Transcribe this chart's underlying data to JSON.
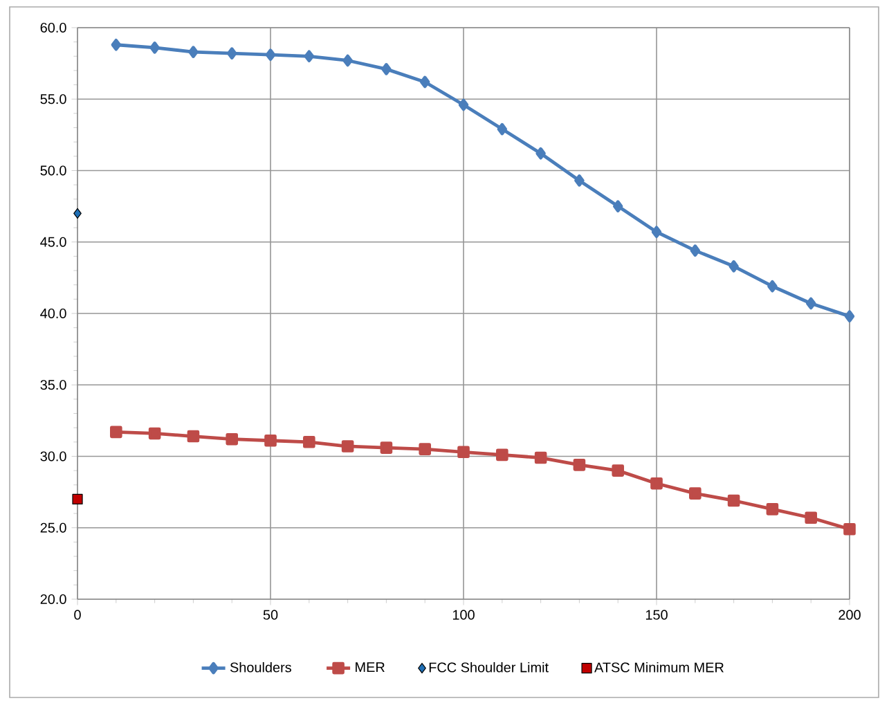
{
  "chart_data": {
    "type": "line",
    "xlim": [
      0,
      200
    ],
    "xticks": [
      0,
      50,
      100,
      150,
      200
    ],
    "ylim": [
      20,
      60
    ],
    "yticks": [
      {
        "value": 20,
        "label": "20.0"
      },
      {
        "value": 25,
        "label": "25.0"
      },
      {
        "value": 30,
        "label": "30.0"
      },
      {
        "value": 35,
        "label": "35.0"
      },
      {
        "value": 40,
        "label": "40.0"
      },
      {
        "value": 45,
        "label": "45.0"
      },
      {
        "value": 50,
        "label": "50.0"
      },
      {
        "value": 55,
        "label": "55.0"
      },
      {
        "value": 60,
        "label": "60.0"
      }
    ],
    "grid": true,
    "legend": "bottom",
    "series": [
      {
        "name": "Shoulders",
        "marker": "diamond",
        "color": "#4a7ebb",
        "x": [
          10,
          20,
          30,
          40,
          50,
          60,
          70,
          80,
          90,
          100,
          110,
          120,
          130,
          140,
          150,
          160,
          170,
          180,
          190,
          200
        ],
        "values": [
          58.8,
          58.6,
          58.3,
          58.2,
          58.1,
          58.0,
          57.7,
          57.1,
          56.2,
          54.6,
          52.9,
          51.2,
          49.3,
          47.5,
          45.7,
          44.4,
          43.3,
          41.9,
          40.7,
          39.8
        ]
      },
      {
        "name": "MER",
        "marker": "square",
        "color": "#be4b48",
        "x": [
          10,
          20,
          30,
          40,
          50,
          60,
          70,
          80,
          90,
          100,
          110,
          120,
          130,
          140,
          150,
          160,
          170,
          180,
          190,
          200
        ],
        "values": [
          31.7,
          31.6,
          31.4,
          31.2,
          31.1,
          31.0,
          30.7,
          30.6,
          30.5,
          30.3,
          30.1,
          29.9,
          29.4,
          29.0,
          28.1,
          27.4,
          26.9,
          26.3,
          25.7,
          24.9
        ]
      },
      {
        "name": "FCC Shoulder Limit",
        "type": "scatter",
        "marker": "diamond",
        "color": "#1f6fb5",
        "x": [
          0
        ],
        "values": [
          47.0
        ]
      },
      {
        "name": "ATSC Minimum  MER",
        "type": "scatter",
        "marker": "square",
        "color": "#c00000",
        "x": [
          0
        ],
        "values": [
          27.0
        ]
      }
    ]
  }
}
